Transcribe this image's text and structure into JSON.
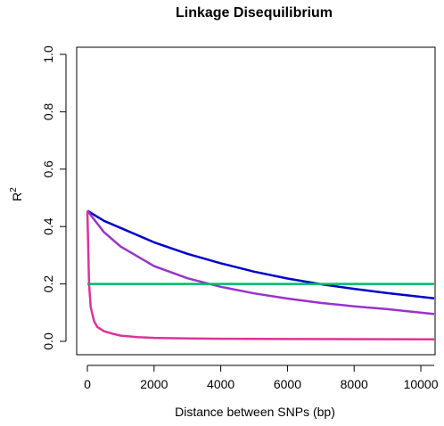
{
  "chart_data": {
    "type": "line",
    "title": "Linkage Disequilibrium",
    "xlabel": "Distance between SNPs (bp)",
    "ylabel": "R",
    "ylabel_superscript": "2",
    "xlim": [
      0,
      10400
    ],
    "ylim": [
      0,
      1.0
    ],
    "x_ticks": [
      0,
      2000,
      4000,
      6000,
      8000,
      10000
    ],
    "y_ticks": [
      "0.0",
      "0.2",
      "0.4",
      "0.6",
      "0.8",
      "1.0"
    ],
    "grid": false,
    "legend": "none",
    "series": [
      {
        "color": "#0000cc",
        "x": [
          0,
          500,
          1000,
          2000,
          3000,
          4000,
          5000,
          6000,
          7000,
          8000,
          9000,
          10400
        ],
        "y": [
          0.455,
          0.42,
          0.395,
          0.345,
          0.305,
          0.272,
          0.243,
          0.219,
          0.199,
          0.183,
          0.168,
          0.15
        ]
      },
      {
        "color": "#9933cc",
        "x": [
          0,
          500,
          1000,
          2000,
          3000,
          4000,
          5000,
          6000,
          7000,
          8000,
          9000,
          10400
        ],
        "y": [
          0.455,
          0.38,
          0.33,
          0.262,
          0.22,
          0.19,
          0.167,
          0.149,
          0.134,
          0.122,
          0.112,
          0.095
        ]
      },
      {
        "color": "#dd3399",
        "x": [
          0,
          50,
          100,
          200,
          300,
          500,
          800,
          1000,
          1500,
          2000,
          3000,
          4000,
          6000,
          10400
        ],
        "y": [
          0.455,
          0.2,
          0.12,
          0.07,
          0.05,
          0.035,
          0.025,
          0.02,
          0.015,
          0.012,
          0.01,
          0.009,
          0.008,
          0.007
        ]
      },
      {
        "color": "#00bb66",
        "x": [
          0,
          10400
        ],
        "y": [
          0.2,
          0.2
        ]
      }
    ]
  }
}
